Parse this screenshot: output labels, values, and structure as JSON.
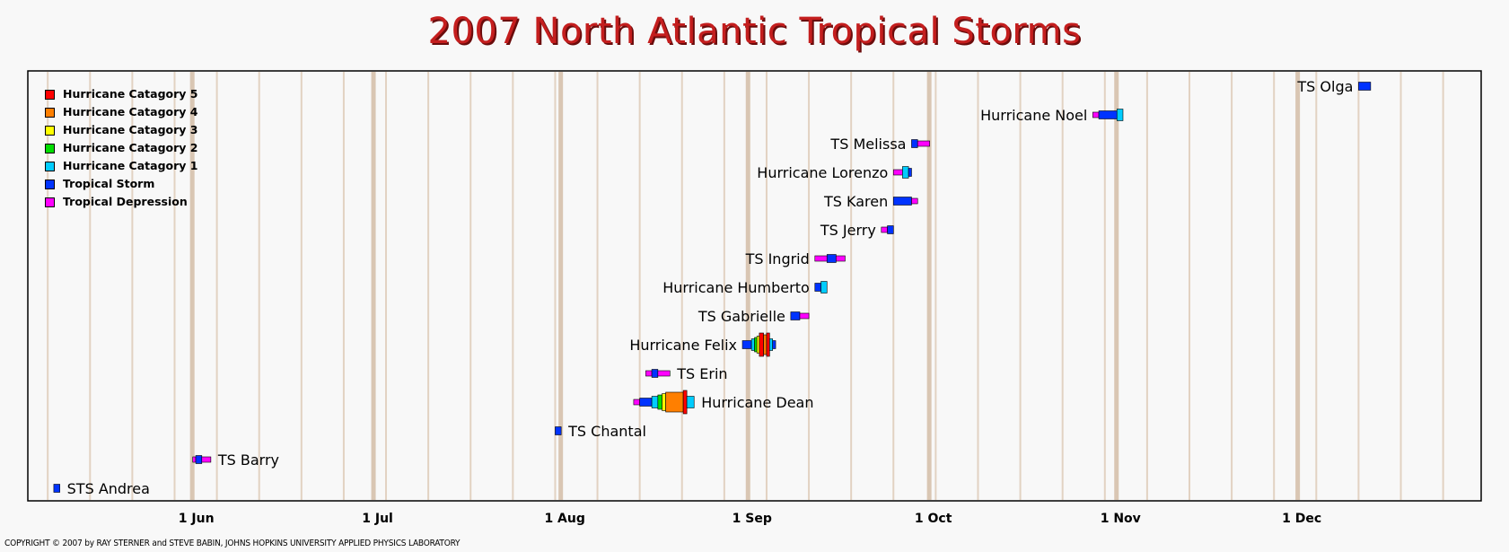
{
  "chart_data": {
    "type": "timeline",
    "title": "2007 North Atlantic Tropical Storms",
    "x_range": [
      "2007-05-05",
      "2007-12-31"
    ],
    "x_ticks": [
      {
        "date": "2007-06-01",
        "label": "1 Jun"
      },
      {
        "date": "2007-07-01",
        "label": "1 Jul"
      },
      {
        "date": "2007-08-01",
        "label": "1 Aug"
      },
      {
        "date": "2007-09-01",
        "label": "1 Sep"
      },
      {
        "date": "2007-10-01",
        "label": "1 Oct"
      },
      {
        "date": "2007-11-01",
        "label": "1 Nov"
      },
      {
        "date": "2007-12-01",
        "label": "1 Dec"
      }
    ],
    "categories": [
      {
        "key": "C5",
        "label": "Hurricane Catagory 5",
        "color": "#ff0000"
      },
      {
        "key": "C4",
        "label": "Hurricane Catagory 4",
        "color": "#ff7f00"
      },
      {
        "key": "C3",
        "label": "Hurricane Catagory 3",
        "color": "#ffff00"
      },
      {
        "key": "C2",
        "label": "Hurricane Catagory 2",
        "color": "#00dd00"
      },
      {
        "key": "C1",
        "label": "Hurricane Catagory 1",
        "color": "#00ccff"
      },
      {
        "key": "TS",
        "label": "Tropical Storm",
        "color": "#0033ff"
      },
      {
        "key": "TD",
        "label": "Tropical Depression",
        "color": "#ff00ff"
      }
    ],
    "storms": [
      {
        "name": "STS Andrea",
        "label_side": "right",
        "segments": [
          {
            "start": "2007-05-09",
            "end": "2007-05-10",
            "cat": "TS"
          }
        ]
      },
      {
        "name": "TS Barry",
        "label_side": "right",
        "segments": [
          {
            "start": "2007-06-01",
            "end": "2007-06-01.5",
            "cat": "TD"
          },
          {
            "start": "2007-06-01.5",
            "end": "2007-06-02.5",
            "cat": "TS"
          },
          {
            "start": "2007-06-02.5",
            "end": "2007-06-04",
            "cat": "TD"
          }
        ]
      },
      {
        "name": "TS Chantal",
        "label_side": "right",
        "segments": [
          {
            "start": "2007-07-31",
            "end": "2007-08-01",
            "cat": "TS"
          }
        ]
      },
      {
        "name": "Hurricane Dean",
        "label_side": "right",
        "segments": [
          {
            "start": "2007-08-13",
            "end": "2007-08-14",
            "cat": "TD"
          },
          {
            "start": "2007-08-14",
            "end": "2007-08-16",
            "cat": "TS"
          },
          {
            "start": "2007-08-16",
            "end": "2007-08-17",
            "cat": "C1"
          },
          {
            "start": "2007-08-17",
            "end": "2007-08-17.7",
            "cat": "C2"
          },
          {
            "start": "2007-08-17.7",
            "end": "2007-08-18.3",
            "cat": "C3"
          },
          {
            "start": "2007-08-18.3",
            "end": "2007-08-21.2",
            "cat": "C4"
          },
          {
            "start": "2007-08-21.2",
            "end": "2007-08-21.8",
            "cat": "C5"
          },
          {
            "start": "2007-08-21.8",
            "end": "2007-08-23",
            "cat": "C1"
          }
        ]
      },
      {
        "name": "TS Erin",
        "label_side": "right",
        "segments": [
          {
            "start": "2007-08-15",
            "end": "2007-08-16",
            "cat": "TD"
          },
          {
            "start": "2007-08-16",
            "end": "2007-08-17",
            "cat": "TS"
          },
          {
            "start": "2007-08-17",
            "end": "2007-08-19",
            "cat": "TD"
          }
        ]
      },
      {
        "name": "Hurricane Felix",
        "label_side": "left",
        "segments": [
          {
            "start": "2007-08-31",
            "end": "2007-09-01.5",
            "cat": "TS"
          },
          {
            "start": "2007-09-01.5",
            "end": "2007-09-02",
            "cat": "C1"
          },
          {
            "start": "2007-09-02",
            "end": "2007-09-02.4",
            "cat": "C2"
          },
          {
            "start": "2007-09-02.4",
            "end": "2007-09-02.8",
            "cat": "C3"
          },
          {
            "start": "2007-09-02.8",
            "end": "2007-09-03.5",
            "cat": "C5"
          },
          {
            "start": "2007-09-03.5",
            "end": "2007-09-04",
            "cat": "C4"
          },
          {
            "start": "2007-09-04",
            "end": "2007-09-04.5",
            "cat": "C5"
          },
          {
            "start": "2007-09-04.5",
            "end": "2007-09-05",
            "cat": "C1"
          },
          {
            "start": "2007-09-05",
            "end": "2007-09-05.5",
            "cat": "TS"
          }
        ]
      },
      {
        "name": "TS Gabrielle",
        "label_side": "left",
        "segments": [
          {
            "start": "2007-09-08",
            "end": "2007-09-09.5",
            "cat": "TS"
          },
          {
            "start": "2007-09-09.5",
            "end": "2007-09-11",
            "cat": "TD"
          }
        ]
      },
      {
        "name": "Hurricane Humberto",
        "label_side": "left",
        "segments": [
          {
            "start": "2007-09-12",
            "end": "2007-09-13",
            "cat": "TS"
          },
          {
            "start": "2007-09-13",
            "end": "2007-09-14",
            "cat": "C1"
          }
        ]
      },
      {
        "name": "TS Ingrid",
        "label_side": "left",
        "segments": [
          {
            "start": "2007-09-12",
            "end": "2007-09-14",
            "cat": "TD"
          },
          {
            "start": "2007-09-14",
            "end": "2007-09-15.5",
            "cat": "TS"
          },
          {
            "start": "2007-09-15.5",
            "end": "2007-09-17",
            "cat": "TD"
          }
        ]
      },
      {
        "name": "TS Jerry",
        "label_side": "left",
        "segments": [
          {
            "start": "2007-09-23",
            "end": "2007-09-24",
            "cat": "TD"
          },
          {
            "start": "2007-09-24",
            "end": "2007-09-25",
            "cat": "TS"
          }
        ]
      },
      {
        "name": "TS Karen",
        "label_side": "left",
        "segments": [
          {
            "start": "2007-09-25",
            "end": "2007-09-28",
            "cat": "TS"
          },
          {
            "start": "2007-09-28",
            "end": "2007-09-29",
            "cat": "TD"
          }
        ]
      },
      {
        "name": "Hurricane Lorenzo",
        "label_side": "left",
        "segments": [
          {
            "start": "2007-09-25",
            "end": "2007-09-26.5",
            "cat": "TD"
          },
          {
            "start": "2007-09-26.5",
            "end": "2007-09-27.5",
            "cat": "C1"
          },
          {
            "start": "2007-09-27.5",
            "end": "2007-09-28",
            "cat": "TS"
          }
        ]
      },
      {
        "name": "TS Melissa",
        "label_side": "left",
        "segments": [
          {
            "start": "2007-09-28",
            "end": "2007-09-29",
            "cat": "TS"
          },
          {
            "start": "2007-09-29",
            "end": "2007-10-01",
            "cat": "TD"
          }
        ]
      },
      {
        "name": "Hurricane Noel",
        "label_side": "left",
        "segments": [
          {
            "start": "2007-10-28",
            "end": "2007-10-29",
            "cat": "TD"
          },
          {
            "start": "2007-10-29",
            "end": "2007-11-01",
            "cat": "TS"
          },
          {
            "start": "2007-11-01",
            "end": "2007-11-02",
            "cat": "C1"
          }
        ]
      },
      {
        "name": "TS Olga",
        "label_side": "left",
        "segments": [
          {
            "start": "2007-12-11",
            "end": "2007-12-13",
            "cat": "TS"
          }
        ]
      }
    ]
  },
  "copyright": "COPYRIGHT © 2007 by RAY STERNER and STEVE BABIN, JOHNS HOPKINS UNIVERSITY APPLIED PHYSICS LABORATORY"
}
